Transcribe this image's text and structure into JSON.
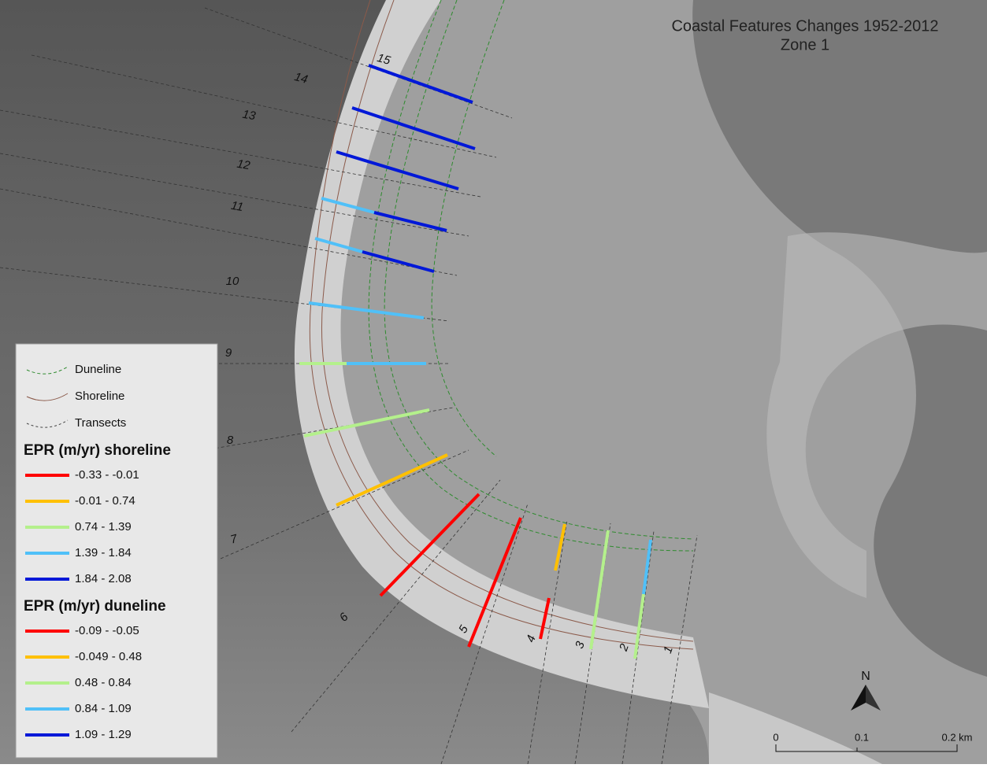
{
  "title": [
    "Coastal Features Changes 1952-2012",
    "Zone 1"
  ],
  "legend": {
    "lines": [
      "Duneline",
      "Shoreline",
      "Transects"
    ],
    "shoreline": {
      "heading": "EPR (m/yr) shoreline",
      "classes": [
        {
          "label": "-0.33 - -0.01",
          "color": "#ff0000"
        },
        {
          "label": "-0.01 - 0.74",
          "color": "#ffc000"
        },
        {
          "label": "0.74 - 1.39",
          "color": "#b4f08c"
        },
        {
          "label": "1.39 - 1.84",
          "color": "#50c0f8"
        },
        {
          "label": "1.84 - 2.08",
          "color": "#0018d8"
        }
      ]
    },
    "duneline": {
      "heading": "EPR (m/yr) duneline",
      "classes": [
        {
          "label": "-0.09 - -0.05",
          "color": "#ff0000"
        },
        {
          "label": "-0.049 - 0.48",
          "color": "#ffc000"
        },
        {
          "label": "0.48 - 0.84",
          "color": "#b4f08c"
        },
        {
          "label": "0.84 - 1.09",
          "color": "#50c0f8"
        },
        {
          "label": "1.09 - 1.29",
          "color": "#0018d8"
        }
      ]
    }
  },
  "transects": [
    "1",
    "2",
    "3",
    "4",
    "5",
    "6",
    "7",
    "8",
    "9",
    "10",
    "11",
    "12",
    "13",
    "14",
    "15"
  ],
  "north": "N",
  "scale": [
    "0",
    "0.1",
    "0.2 km"
  ]
}
